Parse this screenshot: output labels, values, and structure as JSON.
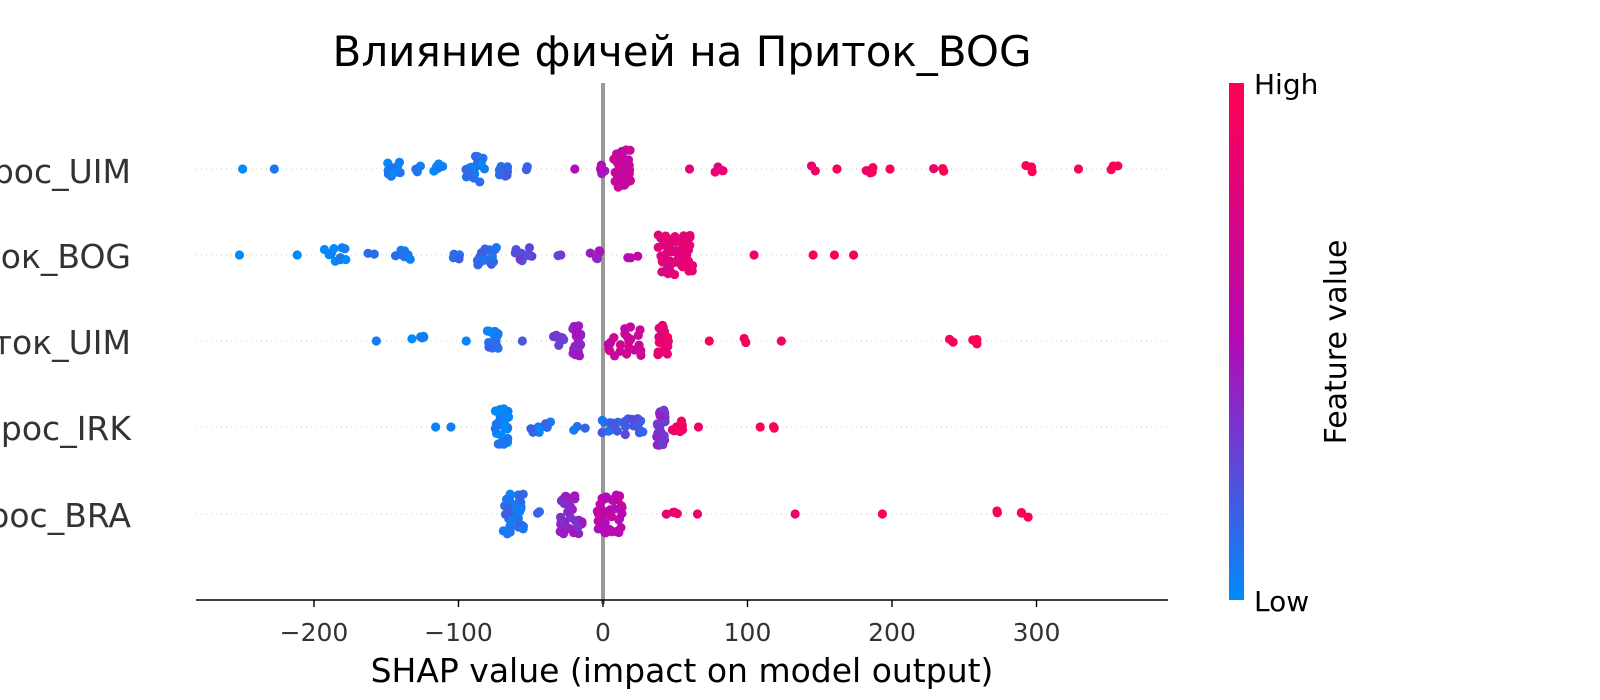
{
  "chart_data": {
    "type": "scatter",
    "title": "Влияние фичей на Приток_BOG",
    "xlabel": "SHAP value (impact on model output)",
    "xlim": [
      -280,
      390
    ],
    "xticks": [
      "−200",
      "−100",
      "0",
      "100",
      "200",
      "300"
    ],
    "xtick_values": [
      -200,
      -100,
      0,
      100,
      200,
      300
    ],
    "features": [
      "Сброс_UIM",
      "Приток_BOG",
      "Приток_UIM",
      "Сброс_IRK",
      "Сброс_BRA"
    ],
    "colorbar": {
      "label": "Feature value",
      "high": "High",
      "low": "Low",
      "low_color": "#008bfb",
      "mid_color": "#b40ab6",
      "high_color": "#ff0052"
    },
    "series": [
      {
        "feature": "Сброс_UIM",
        "clusters": [
          {
            "x": -250,
            "n": 1,
            "c": 0.0,
            "s": 2
          },
          {
            "x": -228,
            "n": 1,
            "c": 0.0,
            "s": 2
          },
          {
            "x": -145,
            "n": 12,
            "c": 0.05,
            "s": 6
          },
          {
            "x": -128,
            "n": 3,
            "c": 0.05,
            "s": 4
          },
          {
            "x": -113,
            "n": 6,
            "c": 0.06,
            "s": 5
          },
          {
            "x": -90,
            "n": 20,
            "c": 0.1,
            "s": 8
          },
          {
            "x": -68,
            "n": 10,
            "c": 0.15,
            "s": 5
          },
          {
            "x": -50,
            "n": 2,
            "c": 0.2,
            "s": 3
          },
          {
            "x": -18,
            "n": 1,
            "c": 0.45,
            "s": 2
          },
          {
            "x": 0,
            "n": 5,
            "c": 0.45,
            "s": 3
          },
          {
            "x": 13,
            "n": 40,
            "c": 0.62,
            "s": 6
          },
          {
            "x": 58,
            "n": 1,
            "c": 0.8,
            "s": 2
          },
          {
            "x": 83,
            "n": 4,
            "c": 0.85,
            "s": 8
          },
          {
            "x": 145,
            "n": 2,
            "c": 0.9,
            "s": 2
          },
          {
            "x": 160,
            "n": 1,
            "c": 0.9,
            "s": 2
          },
          {
            "x": 185,
            "n": 5,
            "c": 0.95,
            "s": 3
          },
          {
            "x": 200,
            "n": 1,
            "c": 0.95,
            "s": 2
          },
          {
            "x": 230,
            "n": 3,
            "c": 0.95,
            "s": 6
          },
          {
            "x": 298,
            "n": 3,
            "c": 1.0,
            "s": 6
          },
          {
            "x": 330,
            "n": 1,
            "c": 1.0,
            "s": 2
          },
          {
            "x": 355,
            "n": 3,
            "c": 1.0,
            "s": 4
          }
        ]
      },
      {
        "feature": "Приток_BOG",
        "clusters": [
          {
            "x": -250,
            "n": 1,
            "c": 0.0,
            "s": 2
          },
          {
            "x": -213,
            "n": 1,
            "c": 0.0,
            "s": 2
          },
          {
            "x": -185,
            "n": 10,
            "c": 0.05,
            "s": 8
          },
          {
            "x": -160,
            "n": 2,
            "c": 0.05,
            "s": 3
          },
          {
            "x": -137,
            "n": 7,
            "c": 0.06,
            "s": 7
          },
          {
            "x": -103,
            "n": 4,
            "c": 0.1,
            "s": 4
          },
          {
            "x": -80,
            "n": 16,
            "c": 0.15,
            "s": 7
          },
          {
            "x": -55,
            "n": 10,
            "c": 0.25,
            "s": 6
          },
          {
            "x": -30,
            "n": 2,
            "c": 0.3,
            "s": 3
          },
          {
            "x": -5,
            "n": 6,
            "c": 0.45,
            "s": 4
          },
          {
            "x": 20,
            "n": 3,
            "c": 0.55,
            "s": 5
          },
          {
            "x": 50,
            "n": 60,
            "c": 0.8,
            "s": 12
          },
          {
            "x": 103,
            "n": 1,
            "c": 0.95,
            "s": 2
          },
          {
            "x": 145,
            "n": 1,
            "c": 0.95,
            "s": 2
          },
          {
            "x": 160,
            "n": 1,
            "c": 0.95,
            "s": 2
          },
          {
            "x": 175,
            "n": 1,
            "c": 0.95,
            "s": 2
          }
        ]
      },
      {
        "feature": "Приток_UIM",
        "clusters": [
          {
            "x": -155,
            "n": 1,
            "c": 0.0,
            "s": 2
          },
          {
            "x": -128,
            "n": 5,
            "c": 0.05,
            "s": 5
          },
          {
            "x": -95,
            "n": 1,
            "c": 0.1,
            "s": 2
          },
          {
            "x": -75,
            "n": 15,
            "c": 0.1,
            "s": 5
          },
          {
            "x": -55,
            "n": 1,
            "c": 0.15,
            "s": 2
          },
          {
            "x": -32,
            "n": 8,
            "c": 0.3,
            "s": 5
          },
          {
            "x": -18,
            "n": 25,
            "c": 0.4,
            "s": 3
          },
          {
            "x": 15,
            "n": 25,
            "c": 0.65,
            "s": 12
          },
          {
            "x": 42,
            "n": 25,
            "c": 0.85,
            "s": 4
          },
          {
            "x": 75,
            "n": 1,
            "c": 0.95,
            "s": 2
          },
          {
            "x": 97,
            "n": 2,
            "c": 0.95,
            "s": 2
          },
          {
            "x": 122,
            "n": 1,
            "c": 0.95,
            "s": 2
          },
          {
            "x": 240,
            "n": 2,
            "c": 1.0,
            "s": 4
          },
          {
            "x": 257,
            "n": 3,
            "c": 1.0,
            "s": 2
          }
        ]
      },
      {
        "feature": "Сброс_IRK",
        "clusters": [
          {
            "x": -115,
            "n": 1,
            "c": 0.0,
            "s": 2
          },
          {
            "x": -105,
            "n": 1,
            "c": 0.05,
            "s": 2
          },
          {
            "x": -70,
            "n": 30,
            "c": 0.05,
            "s": 5
          },
          {
            "x": -40,
            "n": 8,
            "c": 0.1,
            "s": 10
          },
          {
            "x": -15,
            "n": 3,
            "c": 0.1,
            "s": 6
          },
          {
            "x": 5,
            "n": 10,
            "c": 0.15,
            "s": 6
          },
          {
            "x": 22,
            "n": 12,
            "c": 0.2,
            "s": 7
          },
          {
            "x": 40,
            "n": 30,
            "c": 0.35,
            "s": 3
          },
          {
            "x": 52,
            "n": 8,
            "c": 0.9,
            "s": 4
          },
          {
            "x": 68,
            "n": 1,
            "c": 0.95,
            "s": 2
          },
          {
            "x": 108,
            "n": 1,
            "c": 0.95,
            "s": 2
          },
          {
            "x": 118,
            "n": 2,
            "c": 1.0,
            "s": 2
          }
        ]
      },
      {
        "feature": "Сброс_BRA",
        "clusters": [
          {
            "x": -62,
            "n": 45,
            "c": 0.1,
            "s": 7
          },
          {
            "x": -45,
            "n": 2,
            "c": 0.2,
            "s": 2
          },
          {
            "x": -22,
            "n": 35,
            "c": 0.4,
            "s": 8
          },
          {
            "x": 5,
            "n": 40,
            "c": 0.55,
            "s": 9
          },
          {
            "x": 48,
            "n": 4,
            "c": 0.9,
            "s": 5
          },
          {
            "x": 66,
            "n": 1,
            "c": 0.95,
            "s": 2
          },
          {
            "x": 133,
            "n": 1,
            "c": 0.95,
            "s": 2
          },
          {
            "x": 193,
            "n": 1,
            "c": 0.95,
            "s": 2
          },
          {
            "x": 273,
            "n": 2,
            "c": 1.0,
            "s": 2
          },
          {
            "x": 292,
            "n": 3,
            "c": 1.0,
            "s": 4
          }
        ]
      }
    ]
  }
}
